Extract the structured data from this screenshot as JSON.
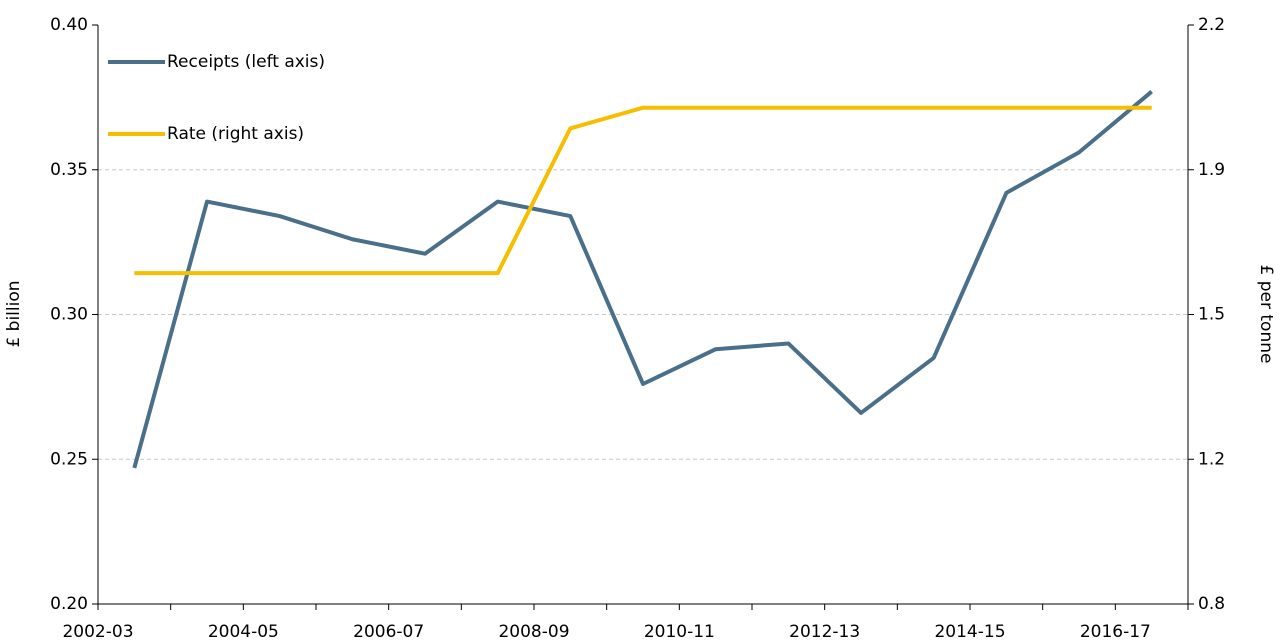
{
  "chart_data": {
    "type": "line",
    "categories": [
      "2002-03",
      null,
      "2004-05",
      null,
      "2006-07",
      null,
      "2008-09",
      null,
      "2010-11",
      null,
      "2012-13",
      null,
      "2014-15",
      null,
      "2016-17"
    ],
    "series": [
      {
        "name": "Receipts (left axis)",
        "color": "#4a6f8a",
        "values": [
          0.247,
          0.339,
          0.334,
          0.326,
          0.321,
          0.339,
          0.334,
          0.276,
          0.288,
          0.29,
          0.266,
          0.285,
          0.342,
          0.356,
          0.377
        ]
      },
      {
        "name": "Rate (right axis)",
        "color": "#f5be00",
        "axis": "y2",
        "values": [
          1.6,
          1.6,
          1.6,
          1.6,
          1.6,
          1.6,
          1.95,
          2.0,
          2.0,
          2.0,
          2.0,
          2.0,
          2.0,
          2.0,
          2.0
        ]
      }
    ],
    "ylabel": "£ billion",
    "y2label": "£ per tonne",
    "ylim": [
      0.2,
      0.4
    ],
    "yticks": [
      {
        "value": 0.2,
        "label": "0.20"
      },
      {
        "value": 0.25,
        "label": "0.25"
      },
      {
        "value": 0.3,
        "label": "0.30"
      },
      {
        "value": 0.35,
        "label": "0.35"
      },
      {
        "value": 0.4,
        "label": "0.40"
      }
    ],
    "y2lim": [
      0.8,
      2.2
    ],
    "y2ticks": [
      0.8,
      {
        "value": 1.15,
        "label": "1.2"
      },
      1.5,
      {
        "value": 1.85,
        "label": "1.9"
      },
      2.2
    ],
    "grid": true,
    "legend": "upper-left"
  }
}
